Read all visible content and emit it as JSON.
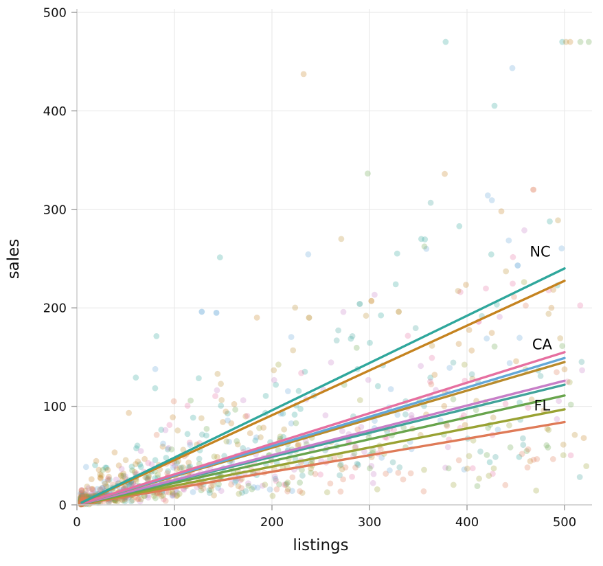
{
  "chart_data": {
    "type": "scatter",
    "title": "",
    "xlabel": "listings",
    "ylabel": "sales",
    "xlim": [
      0,
      500
    ],
    "ylim": [
      0,
      500
    ],
    "xticks": [
      0,
      100,
      200,
      300,
      400,
      500
    ],
    "yticks": [
      0,
      100,
      200,
      300,
      400,
      500
    ],
    "grid": true,
    "legend": "none",
    "description": "Scatter of sales vs listings for multiple groups with per-group linear regression fits; three fits are labeled NC, CA, FL at their right ends.",
    "series": [
      {
        "label": "NC",
        "color": "#2fa79c",
        "slope": 0.48,
        "fit_y_at_500": 240
      },
      {
        "label": "",
        "color": "#c5831f",
        "slope": 0.455,
        "fit_y_at_500": 228
      },
      {
        "label": "CA",
        "color": "#e66fa0",
        "slope": 0.31,
        "fit_y_at_500": 155
      },
      {
        "label": "",
        "color": "#63a7d7",
        "slope": 0.298,
        "fit_y_at_500": 149
      },
      {
        "label": "",
        "color": "#b98b2c",
        "slope": 0.29,
        "fit_y_at_500": 145
      },
      {
        "label": "",
        "color": "#c77ec7",
        "slope": 0.252,
        "fit_y_at_500": 126
      },
      {
        "label": "",
        "color": "#41a39a",
        "slope": 0.244,
        "fit_y_at_500": 122
      },
      {
        "label": "",
        "color": "#68a44c",
        "slope": 0.222,
        "fit_y_at_500": 111
      },
      {
        "label": "FL",
        "color": "#99a233",
        "slope": 0.194,
        "fit_y_at_500": 97
      },
      {
        "label": "",
        "color": "#df7a57",
        "slope": 0.168,
        "fit_y_at_500": 84
      }
    ],
    "annotations": [
      {
        "label": "NC",
        "x": 475,
        "y": 252
      },
      {
        "label": "CA",
        "x": 477,
        "y": 158
      },
      {
        "label": "FL",
        "x": 477,
        "y": 96
      }
    ],
    "extra_points": [
      {
        "x": 468,
        "y": 320,
        "series": 9
      },
      {
        "x": 452,
        "y": 243,
        "series": 3
      },
      {
        "x": 128,
        "y": 196,
        "series": 3
      },
      {
        "x": 143,
        "y": 195,
        "series": 3
      },
      {
        "x": 290,
        "y": 204,
        "series": 6
      },
      {
        "x": 302,
        "y": 207,
        "series": 1
      },
      {
        "x": 238,
        "y": 190,
        "series": 4
      },
      {
        "x": 412,
        "y": 186,
        "series": 2
      },
      {
        "x": 330,
        "y": 196,
        "series": 4
      }
    ],
    "scatter": {
      "seed": 7,
      "points_per_series": 115,
      "x_min": 4,
      "x_power": 2.6,
      "noise_sigma": 0.7,
      "outlier_rate": 0.02,
      "opacity": 0.28,
      "radius": 4.4,
      "line_x": [
        5,
        500
      ],
      "line_width": 3.4
    }
  }
}
